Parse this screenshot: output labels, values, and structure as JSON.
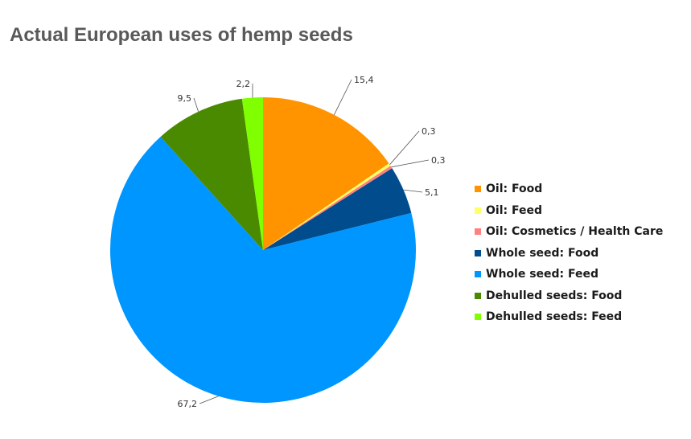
{
  "chart_data": {
    "type": "pie",
    "title": "Actual European uses of hemp seeds",
    "categories": [
      "Oil: Food",
      "Oil: Feed",
      "Oil: Cosmetics / Health Care",
      "Whole seed: Food",
      "Whole seed: Feed",
      "Dehulled seeds: Food",
      "Dehulled seeds: Feed"
    ],
    "values": [
      15.4,
      0.3,
      0.3,
      5.1,
      67.2,
      9.5,
      2.2
    ],
    "value_labels": [
      "15,4",
      "0,3",
      "0,3",
      "5,1",
      "67,2",
      "9,5",
      "2,2"
    ],
    "colors": [
      "#ff9300",
      "#ffff66",
      "#ff8080",
      "#004c8c",
      "#0096ff",
      "#4a8a00",
      "#80ff00"
    ],
    "legend_position": "right"
  }
}
